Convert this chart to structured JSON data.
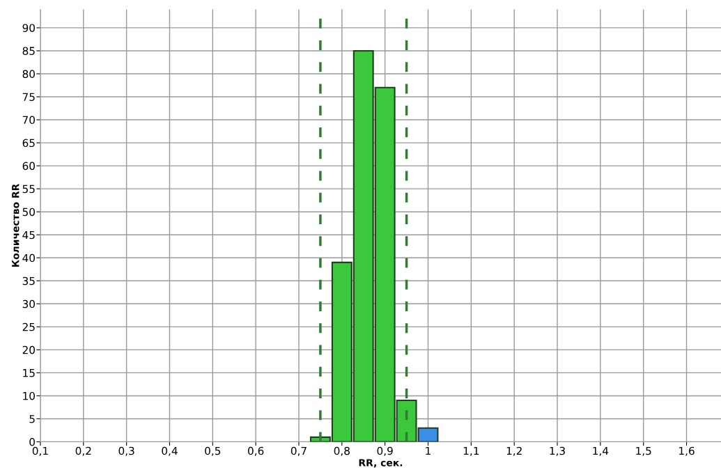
{
  "chart_data": {
    "type": "histogram",
    "xlabel": "RR, сек.",
    "ylabel": "Количество RR",
    "bins": [
      0.725,
      0.775,
      0.825,
      0.875,
      0.925,
      0.975,
      1.025
    ],
    "values": [
      1,
      39,
      85,
      77,
      9,
      3
    ],
    "colors": [
      "#3cc83c",
      "#3cc83c",
      "#3cc83c",
      "#3cc83c",
      "#3cc83c",
      "#3a8ee6"
    ],
    "xlim": [
      0.1,
      1.68
    ],
    "ylim": [
      0,
      94
    ],
    "xticks": [
      {
        "value": 0.1,
        "label": "0,1"
      },
      {
        "value": 0.2,
        "label": "0,2"
      },
      {
        "value": 0.3,
        "label": "0,3"
      },
      {
        "value": 0.4,
        "label": "0,4"
      },
      {
        "value": 0.5,
        "label": "0,5"
      },
      {
        "value": 0.6,
        "label": "0,6"
      },
      {
        "value": 0.7,
        "label": "0,7"
      },
      {
        "value": 0.8,
        "label": "0,8"
      },
      {
        "value": 0.9,
        "label": "0,9"
      },
      1,
      {
        "value": 1.1,
        "label": "1,1"
      },
      {
        "value": 1.2,
        "label": "1,2"
      },
      {
        "value": 1.3,
        "label": "1,3"
      },
      {
        "value": 1.4,
        "label": "1,4"
      },
      {
        "value": 1.5,
        "label": "1,5"
      },
      {
        "value": 1.6,
        "label": "1,6"
      }
    ],
    "yticks": [
      0,
      5,
      10,
      15,
      20,
      25,
      30,
      35,
      40,
      45,
      50,
      55,
      60,
      65,
      70,
      75,
      80,
      85,
      90
    ],
    "grid": true,
    "ref_lines": [
      {
        "axis": "x",
        "value": 0.75,
        "color": "#2e7d32",
        "line_style": "dashed"
      },
      {
        "axis": "x",
        "value": 0.95,
        "color": "#2e7d32",
        "line_style": "dashed"
      }
    ]
  }
}
